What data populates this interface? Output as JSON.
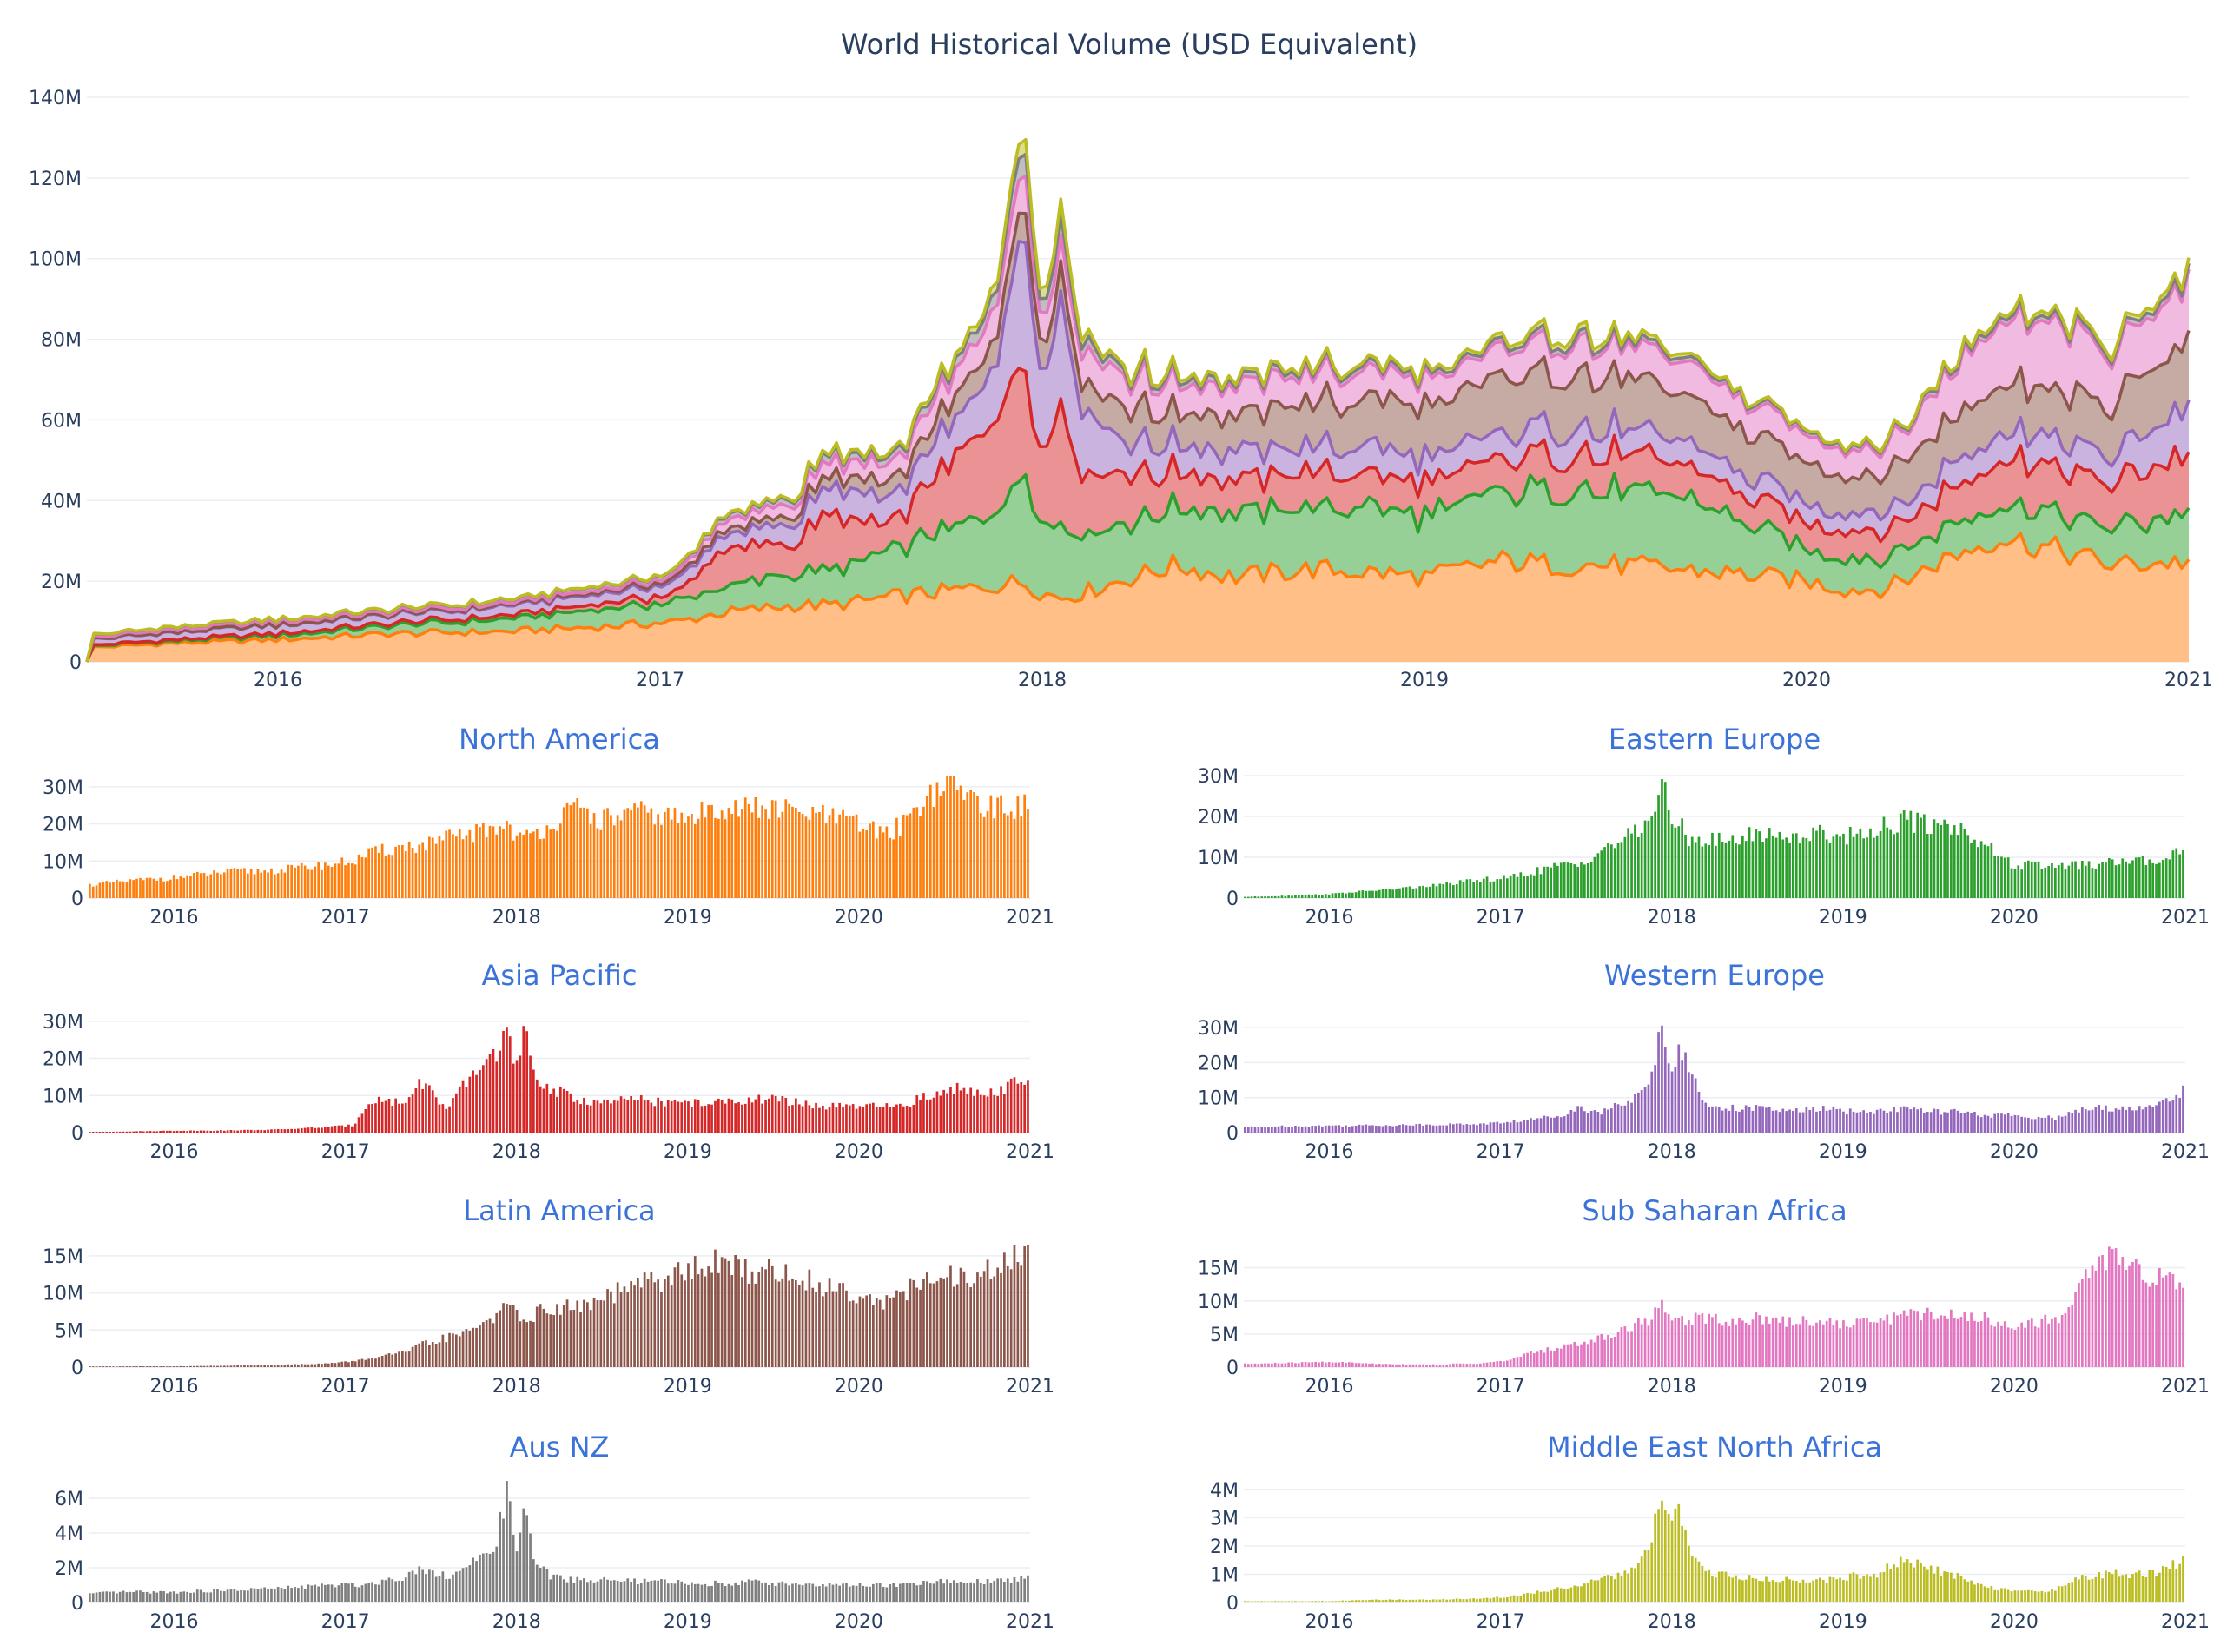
{
  "chart_data": [
    {
      "type": "area",
      "stacked": true,
      "title": "World Historical Volume (USD Equivalent)",
      "x_tick_labels": [
        "2016",
        "2017",
        "2018",
        "2019",
        "2020",
        "2021"
      ],
      "y_tick_labels": [
        "0",
        "20M",
        "40M",
        "60M",
        "80M",
        "100M",
        "120M",
        "140M"
      ],
      "ylim": [
        0,
        140
      ],
      "y_unit": "M USD",
      "x": [
        2015.5,
        2015.7,
        2016.0,
        2016.3,
        2016.6,
        2016.9,
        2017.05,
        2017.15,
        2017.35,
        2017.45,
        2017.6,
        2017.7,
        2017.8,
        2017.88,
        2017.95,
        2018.0,
        2018.05,
        2018.1,
        2018.2,
        2018.35,
        2018.5,
        2018.7,
        2018.9,
        2019.0,
        2019.2,
        2019.35,
        2019.5,
        2019.65,
        2019.8,
        2020.0,
        2020.1,
        2020.2,
        2020.25,
        2020.35,
        2020.5,
        2020.6,
        2020.8,
        2021.0
      ],
      "series": [
        {
          "name": "North America",
          "color": "#ff7f0e",
          "values": [
            3.5,
            4.5,
            5.5,
            7,
            7.5,
            9,
            10,
            12,
            14,
            14,
            16,
            17,
            18,
            19,
            20,
            17,
            16,
            17,
            20,
            24,
            21,
            23,
            22,
            21,
            25,
            24,
            24,
            23,
            22,
            20,
            18,
            18,
            20,
            25,
            31,
            29,
            24,
            25
          ]
        },
        {
          "name": "Eastern Europe",
          "color": "#2ca02c",
          "values": [
            0.3,
            0.5,
            1,
            2,
            3,
            4.5,
            5,
            6,
            8,
            8,
            12,
            14,
            16,
            20,
            28,
            18,
            18,
            15,
            14,
            14,
            16,
            15,
            16,
            15,
            17,
            19,
            18,
            18,
            14,
            8,
            8,
            8,
            8,
            8,
            8,
            9,
            9,
            12
          ]
        },
        {
          "name": "Asia Pacific",
          "color": "#d62728",
          "values": [
            0.2,
            0.3,
            0.5,
            0.6,
            0.8,
            1.5,
            2,
            9,
            8,
            14,
            6,
            13,
            18,
            22,
            27,
            16,
            28,
            15,
            12,
            9,
            8,
            9,
            8,
            8,
            8,
            9,
            9,
            8,
            7,
            7,
            7,
            7,
            7,
            9,
            11,
            12,
            11,
            15
          ]
        },
        {
          "name": "Western Europe",
          "color": "#9467bd",
          "values": [
            1.5,
            1.8,
            2,
            2.1,
            2.3,
            2.5,
            3,
            3.5,
            5,
            7,
            6,
            8,
            10,
            14,
            34,
            16,
            26,
            18,
            8,
            7,
            7,
            6,
            7,
            6,
            6,
            7,
            6,
            6,
            5,
            5,
            4,
            5,
            4,
            6,
            7,
            7,
            7,
            12
          ]
        },
        {
          "name": "Latin America",
          "color": "#8c564b",
          "values": [
            0.1,
            0.1,
            0.1,
            0.2,
            0.3,
            0.5,
            0.8,
            1.2,
            2,
            3,
            4,
            4.5,
            6,
            7,
            8,
            7,
            7,
            7,
            8,
            8,
            9,
            11,
            12,
            13,
            14,
            13,
            13,
            12,
            11,
            10,
            9,
            9,
            10,
            11,
            12,
            12,
            13,
            16
          ]
        },
        {
          "name": "Sub Saharan Africa",
          "color": "#e377c2",
          "values": [
            0.5,
            0.6,
            0.8,
            0.5,
            0.4,
            0.6,
            1,
            2,
            3,
            3.5,
            4.5,
            5.5,
            6.5,
            7.5,
            9,
            7,
            7,
            7.5,
            7.5,
            7,
            7.5,
            7,
            7,
            6.5,
            7,
            8,
            8,
            8,
            7.5,
            6.5,
            6.5,
            7,
            7,
            11,
            16,
            17,
            13,
            14
          ]
        },
        {
          "name": "Aus NZ",
          "color": "#7f7f7f",
          "values": [
            0.5,
            0.6,
            0.6,
            0.7,
            0.8,
            1,
            1,
            1.1,
            1.5,
            2,
            1.5,
            2,
            2.5,
            3.5,
            6.5,
            3,
            5.5,
            2.5,
            1.5,
            1.3,
            1.3,
            1.2,
            1.2,
            1.1,
            1.1,
            1.2,
            1.1,
            1.1,
            1,
            1,
            1,
            1,
            1,
            1.1,
            1.2,
            1.2,
            1.2,
            1.5
          ]
        },
        {
          "name": "Middle East North Africa",
          "color": "#bcbd22",
          "values": [
            0.05,
            0.05,
            0.05,
            0.1,
            0.1,
            0.15,
            0.2,
            0.3,
            0.5,
            0.6,
            0.8,
            1,
            1.2,
            2,
            4,
            2.5,
            3.5,
            2,
            1,
            1,
            0.8,
            0.8,
            0.8,
            0.9,
            1,
            1.5,
            1.2,
            1,
            0.6,
            0.4,
            0.4,
            0.4,
            0.5,
            0.8,
            1,
            1,
            1,
            1.5
          ]
        }
      ]
    },
    {
      "type": "bar",
      "title": "North America",
      "color": "#ff7f0e",
      "x_tick_labels": [
        "2016",
        "2017",
        "2018",
        "2019",
        "2020",
        "2021"
      ],
      "y_tick_labels": [
        "0",
        "10M",
        "20M",
        "30M"
      ],
      "ylim": [
        0,
        33
      ]
    },
    {
      "type": "bar",
      "title": "Eastern Europe",
      "color": "#2ca02c",
      "x_tick_labels": [
        "2016",
        "2017",
        "2018",
        "2019",
        "2020",
        "2021"
      ],
      "y_tick_labels": [
        "0",
        "10M",
        "20M",
        "30M"
      ],
      "ylim": [
        0,
        30
      ]
    },
    {
      "type": "bar",
      "title": "Asia Pacific",
      "color": "#d62728",
      "x_tick_labels": [
        "2016",
        "2017",
        "2018",
        "2019",
        "2020",
        "2021"
      ],
      "y_tick_labels": [
        "0",
        "10M",
        "20M",
        "30M"
      ],
      "ylim": [
        0,
        33
      ]
    },
    {
      "type": "bar",
      "title": "Western Europe",
      "color": "#9467bd",
      "x_tick_labels": [
        "2016",
        "2017",
        "2018",
        "2019",
        "2020",
        "2021"
      ],
      "y_tick_labels": [
        "0",
        "10M",
        "20M",
        "30M"
      ],
      "ylim": [
        0,
        35
      ]
    },
    {
      "type": "bar",
      "title": "Latin America",
      "color": "#8c564b",
      "x_tick_labels": [
        "2016",
        "2017",
        "2018",
        "2019",
        "2020",
        "2021"
      ],
      "y_tick_labels": [
        "0",
        "5M",
        "10M",
        "15M"
      ],
      "ylim": [
        0,
        16.5
      ]
    },
    {
      "type": "bar",
      "title": "Sub Saharan Africa",
      "color": "#e377c2",
      "x_tick_labels": [
        "2016",
        "2017",
        "2018",
        "2019",
        "2020",
        "2021"
      ],
      "y_tick_labels": [
        "0",
        "5M",
        "10M",
        "15M"
      ],
      "ylim": [
        0,
        18.5
      ]
    },
    {
      "type": "bar",
      "title": "Aus NZ",
      "color": "#7f7f7f",
      "x_tick_labels": [
        "2016",
        "2017",
        "2018",
        "2019",
        "2020",
        "2021"
      ],
      "y_tick_labels": [
        "0",
        "2M",
        "4M",
        "6M"
      ],
      "ylim": [
        0,
        7
      ]
    },
    {
      "type": "bar",
      "title": "Middle East North Africa",
      "color": "#bcbd22",
      "x_tick_labels": [
        "2016",
        "2017",
        "2018",
        "2019",
        "2020",
        "2021"
      ],
      "y_tick_labels": [
        "0",
        "1M",
        "2M",
        "3M",
        "4M"
      ],
      "ylim": [
        0,
        4.3
      ]
    }
  ]
}
